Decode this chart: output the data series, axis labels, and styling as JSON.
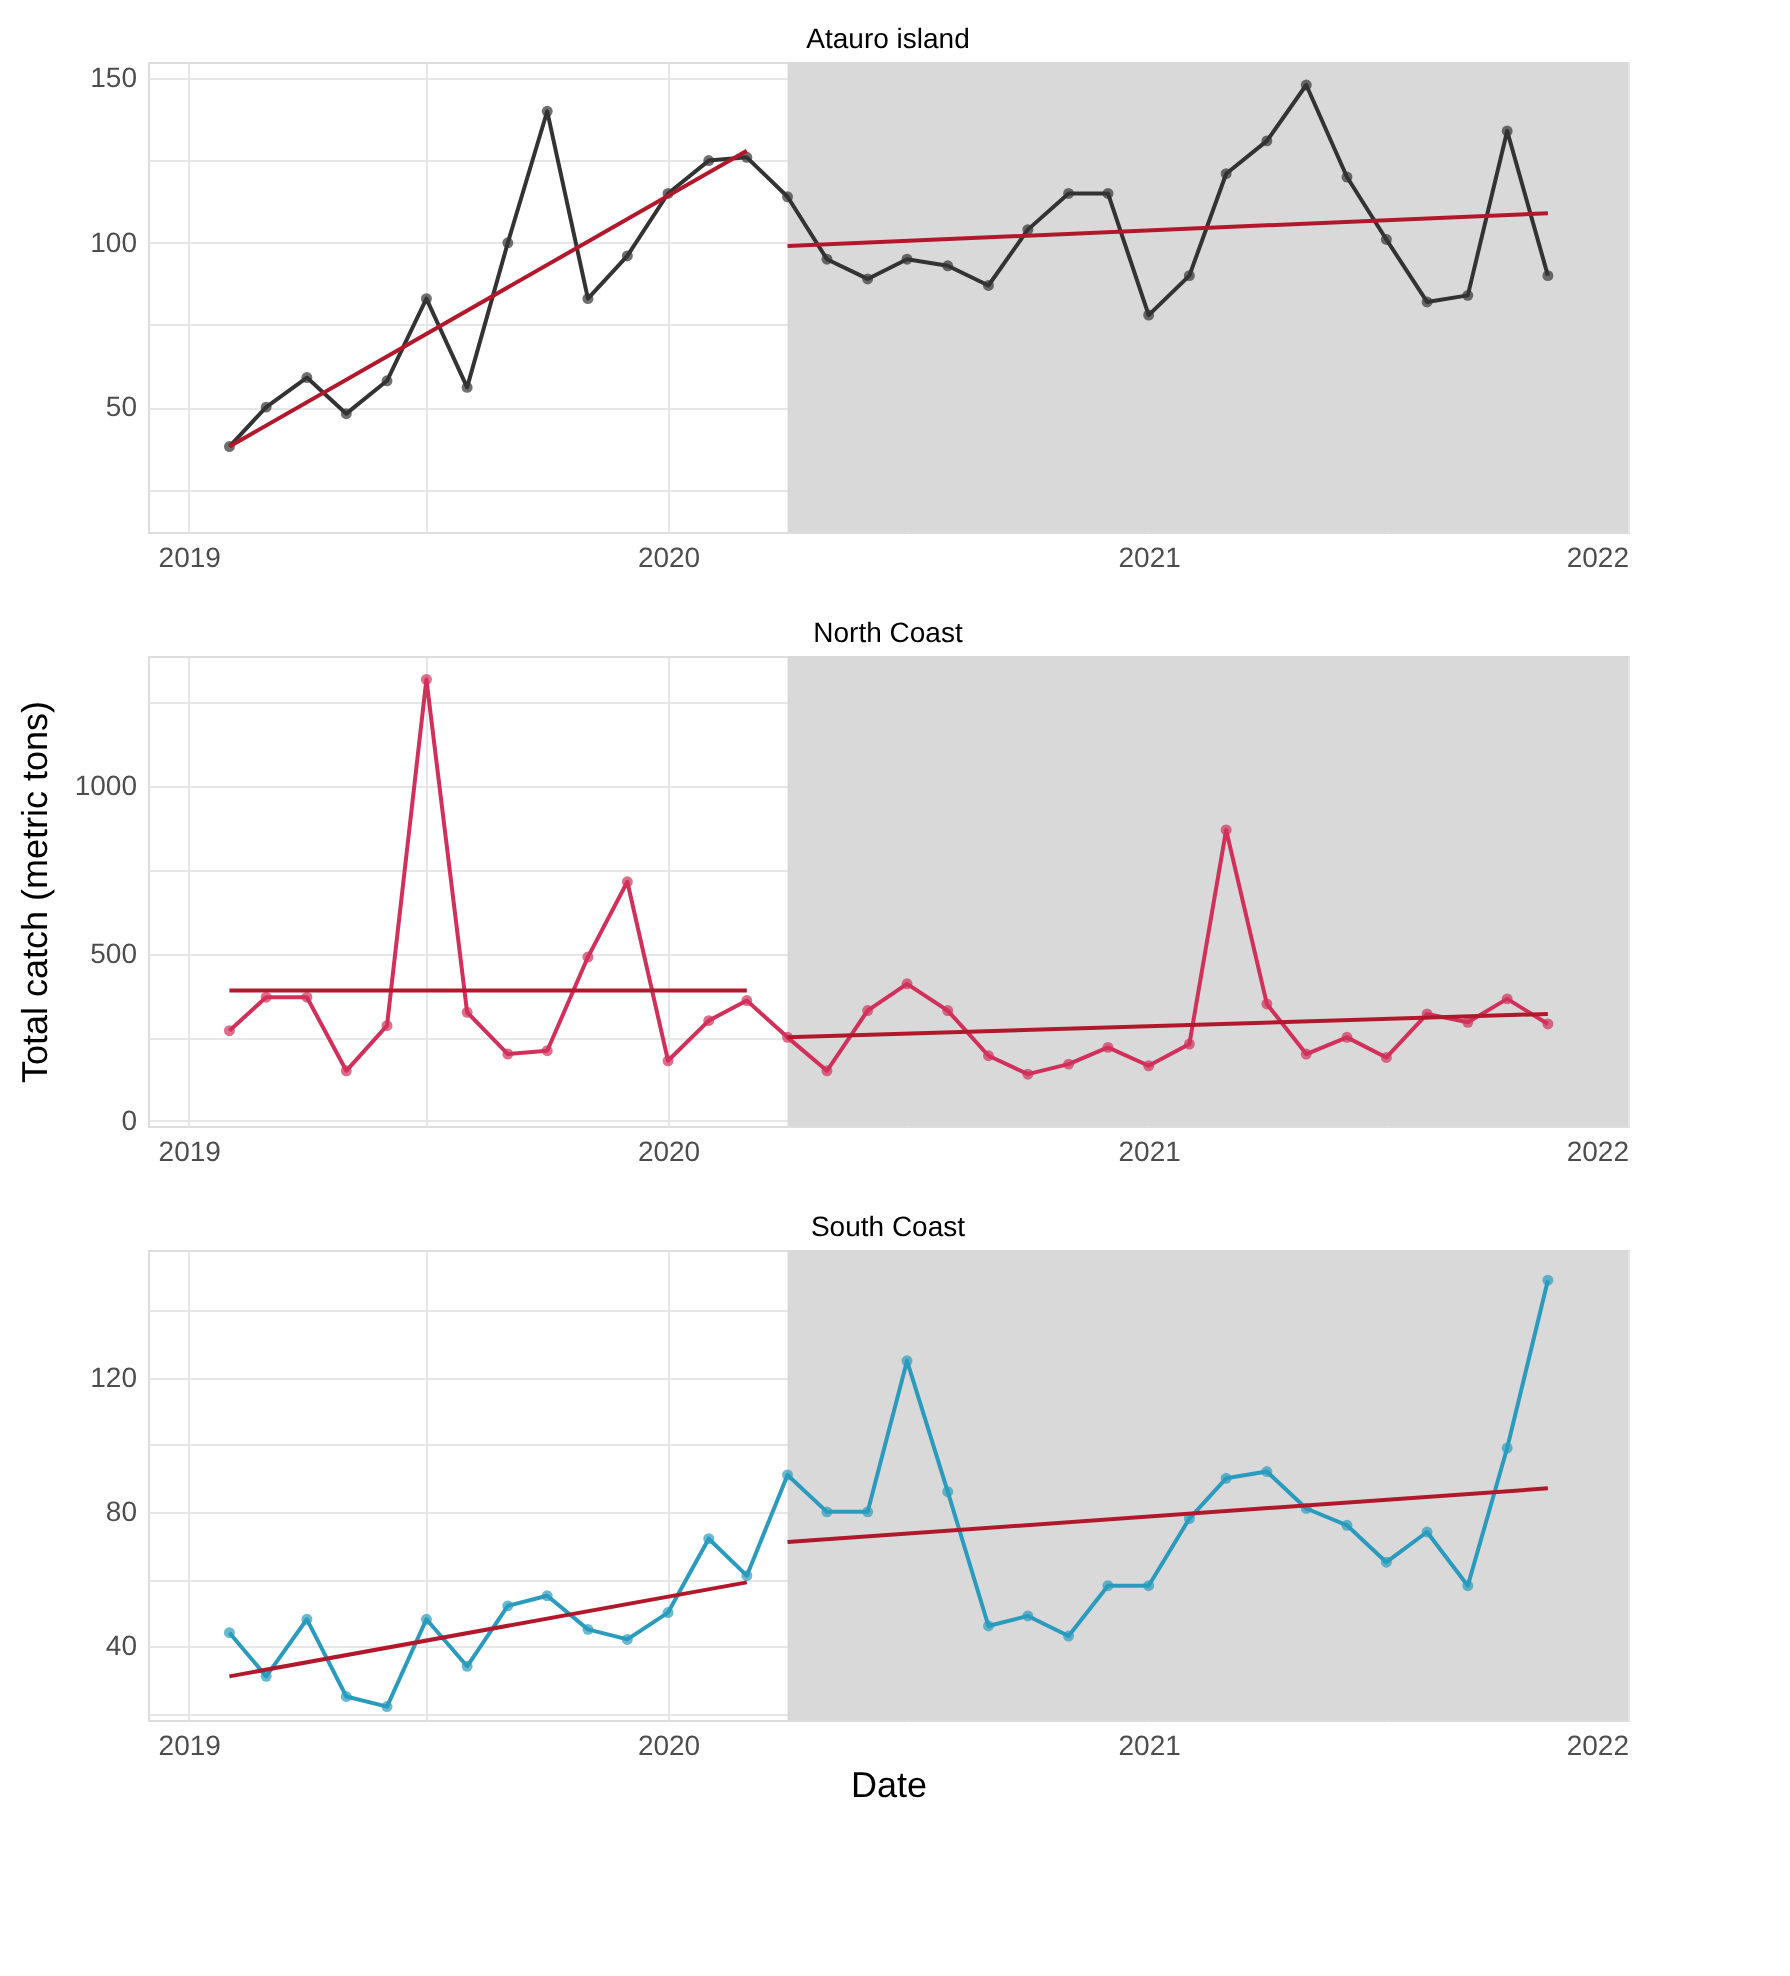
{
  "chart_data": [
    {
      "type": "line",
      "title": "Atauro island",
      "x": [
        "2019-02",
        "2019-03",
        "2019-04",
        "2019-05",
        "2019-06",
        "2019-07",
        "2019-08",
        "2019-09",
        "2019-10",
        "2019-11",
        "2019-12",
        "2020-01",
        "2020-02",
        "2020-03",
        "2020-04",
        "2020-05",
        "2020-06",
        "2020-07",
        "2020-08",
        "2020-09",
        "2020-10",
        "2020-11",
        "2020-12",
        "2021-01",
        "2021-02",
        "2021-03",
        "2021-04",
        "2021-05",
        "2021-06",
        "2021-07",
        "2021-08",
        "2021-09",
        "2021-10",
        "2021-11"
      ],
      "series": [
        {
          "color": "#333333",
          "marker": "circle",
          "values": [
            38,
            50,
            59,
            48,
            58,
            83,
            56,
            100,
            140,
            83,
            96,
            115,
            125,
            126,
            114,
            95,
            89,
            95,
            93,
            87,
            104,
            115,
            115,
            78,
            90,
            121,
            131,
            148,
            120,
            101,
            82,
            84,
            134,
            90
          ]
        },
        {
          "color": "#b2182b",
          "marker": "none",
          "x": [
            "2019-02",
            "2020-03"
          ],
          "values": [
            38,
            128
          ]
        },
        {
          "color": "#b2182b",
          "marker": "none",
          "x": [
            "2020-04",
            "2021-11"
          ],
          "values": [
            99,
            109
          ]
        }
      ],
      "xlim": [
        "2018-12",
        "2022-01"
      ],
      "xticks": [
        "2019",
        {
          "value": "2019-07",
          "label": null
        },
        "2020",
        {
          "value": "2020-07",
          "label": null
        },
        "2021",
        {
          "value": "2021-07",
          "label": null
        },
        "2022"
      ],
      "ylim": [
        12,
        155
      ],
      "yticks": [
        {
          "value": 25,
          "label": null
        },
        50,
        {
          "value": 75,
          "label": null
        },
        100,
        {
          "value": 125,
          "label": null
        },
        150
      ],
      "bands": [
        {
          "axis": "x",
          "from": "2020-04",
          "to": "2022-01",
          "color": "#d9d9d9"
        }
      ],
      "grid": true,
      "line_style": "solid"
    },
    {
      "type": "line",
      "title": "North Coast",
      "ylabel": "Total catch (metric tons)",
      "x": [
        "2019-02",
        "2019-03",
        "2019-04",
        "2019-05",
        "2019-06",
        "2019-07",
        "2019-08",
        "2019-09",
        "2019-10",
        "2019-11",
        "2019-12",
        "2020-01",
        "2020-02",
        "2020-03",
        "2020-04",
        "2020-05",
        "2020-06",
        "2020-07",
        "2020-08",
        "2020-09",
        "2020-10",
        "2020-11",
        "2020-12",
        "2021-01",
        "2021-02",
        "2021-03",
        "2021-04",
        "2021-05",
        "2021-06",
        "2021-07",
        "2021-08",
        "2021-09",
        "2021-10",
        "2021-11"
      ],
      "series": [
        {
          "color": "#d0305a",
          "marker": "circle",
          "values": [
            270,
            370,
            370,
            150,
            285,
            1320,
            325,
            200,
            210,
            490,
            715,
            180,
            300,
            360,
            250,
            150,
            330,
            410,
            330,
            195,
            140,
            170,
            220,
            165,
            230,
            870,
            350,
            200,
            250,
            190,
            320,
            295,
            365,
            290
          ]
        },
        {
          "color": "#b2182b",
          "marker": "none",
          "x": [
            "2019-02",
            "2020-03"
          ],
          "values": [
            390,
            390
          ]
        },
        {
          "color": "#b2182b",
          "marker": "none",
          "x": [
            "2020-04",
            "2021-11"
          ],
          "values": [
            250,
            320
          ]
        }
      ],
      "xlim": [
        "2018-12",
        "2022-01"
      ],
      "xticks": [
        "2019",
        {
          "value": "2019-07",
          "label": null
        },
        "2020",
        {
          "value": "2020-07",
          "label": null
        },
        "2021",
        {
          "value": "2021-07",
          "label": null
        },
        "2022"
      ],
      "ylim": [
        -15,
        1390
      ],
      "yticks": [
        0,
        {
          "value": 250,
          "label": null
        },
        500,
        {
          "value": 750,
          "label": null
        },
        1000,
        {
          "value": 1250,
          "label": null
        }
      ],
      "bands": [
        {
          "axis": "x",
          "from": "2020-04",
          "to": "2022-01",
          "color": "#d9d9d9"
        }
      ],
      "grid": true,
      "line_style": "solid"
    },
    {
      "type": "line",
      "title": "South Coast",
      "xlabel": "Date",
      "x": [
        "2019-02",
        "2019-03",
        "2019-04",
        "2019-05",
        "2019-06",
        "2019-07",
        "2019-08",
        "2019-09",
        "2019-10",
        "2019-11",
        "2019-12",
        "2020-01",
        "2020-02",
        "2020-03",
        "2020-04",
        "2020-05",
        "2020-06",
        "2020-07",
        "2020-08",
        "2020-09",
        "2020-10",
        "2020-11",
        "2020-12",
        "2021-01",
        "2021-02",
        "2021-03",
        "2021-04",
        "2021-05",
        "2021-06",
        "2021-07",
        "2021-08",
        "2021-09",
        "2021-10",
        "2021-11"
      ],
      "series": [
        {
          "color": "#2a9bbd",
          "marker": "circle",
          "values": [
            44,
            31,
            48,
            25,
            22,
            48,
            34,
            52,
            55,
            45,
            42,
            50,
            72,
            61,
            91,
            80,
            80,
            125,
            86,
            46,
            49,
            43,
            58,
            58,
            78,
            90,
            92,
            81,
            76,
            65,
            74,
            58,
            99,
            149
          ]
        },
        {
          "color": "#b2182b",
          "marker": "none",
          "x": [
            "2019-02",
            "2020-03"
          ],
          "values": [
            31,
            59
          ]
        },
        {
          "color": "#b2182b",
          "marker": "none",
          "x": [
            "2020-04",
            "2021-11"
          ],
          "values": [
            71,
            87
          ]
        }
      ],
      "xlim": [
        "2018-12",
        "2022-01"
      ],
      "xticks": [
        "2019",
        {
          "value": "2019-07",
          "label": null
        },
        "2020",
        {
          "value": "2020-07",
          "label": null
        },
        "2021",
        {
          "value": "2021-07",
          "label": null
        },
        "2022"
      ],
      "ylim": [
        18,
        158
      ],
      "yticks": [
        {
          "value": 20,
          "label": null
        },
        40,
        {
          "value": 60,
          "label": null
        },
        80,
        {
          "value": 100,
          "label": null
        },
        120,
        {
          "value": 140,
          "label": null
        }
      ],
      "bands": [
        {
          "axis": "x",
          "from": "2020-04",
          "to": "2022-01",
          "color": "#d9d9d9"
        }
      ],
      "grid": true,
      "line_style": "solid"
    }
  ]
}
